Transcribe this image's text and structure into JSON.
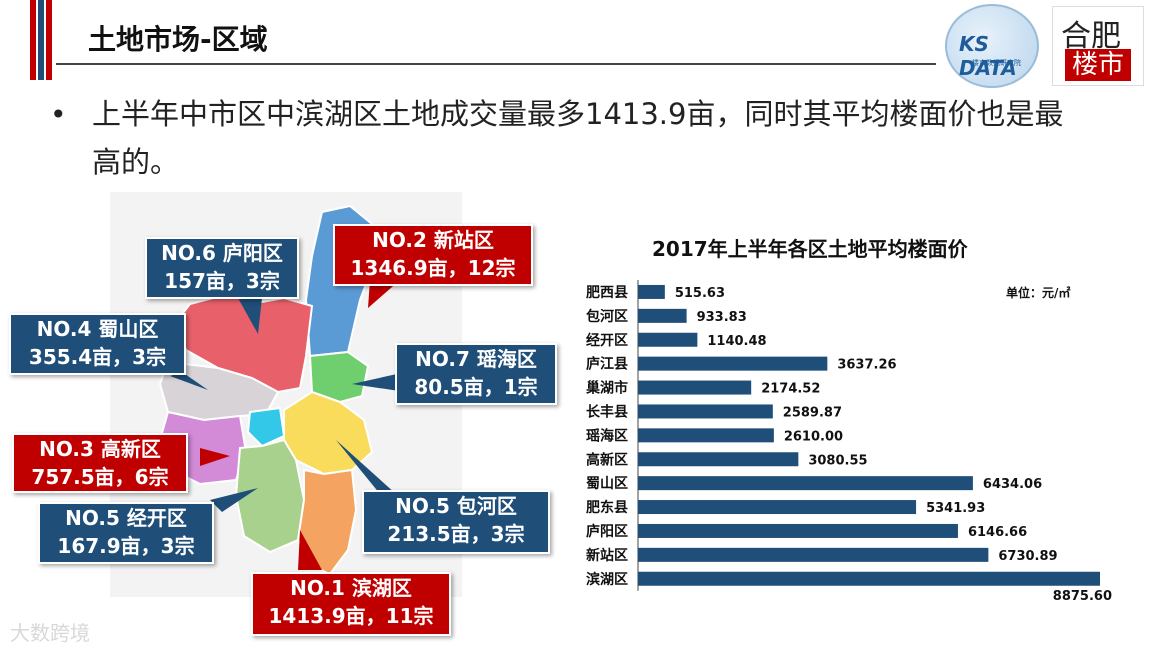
{
  "page": {
    "title": "土地市场-区域",
    "summary": "上半年中市区中滨湖区土地成交量最多1413.9亩，同时其平均楼面价也是最高的。",
    "bullet": "•",
    "watermark": "大数跨境"
  },
  "logos": {
    "ks_data": "KS DATA",
    "ks_sub": "楼市数据研究院",
    "hefei_top": "合肥",
    "hefei_bottom": "楼市"
  },
  "colors": {
    "callout_blue": "#1f4e79",
    "callout_red": "#c00000",
    "bar": "#1f4e79"
  },
  "map_callouts": [
    {
      "rank": "NO.6 庐阳区",
      "detail": "157亩，3宗",
      "color": "blue"
    },
    {
      "rank": "NO.2  新站区",
      "detail": "1346.9亩，12宗",
      "color": "red"
    },
    {
      "rank": "NO.4  蜀山区",
      "detail": "355.4亩，3宗",
      "color": "blue"
    },
    {
      "rank": "NO.7  瑶海区",
      "detail": "80.5亩，1宗",
      "color": "blue"
    },
    {
      "rank": "NO.3  高新区",
      "detail": "757.5亩，6宗",
      "color": "red"
    },
    {
      "rank": "NO.5  经开区",
      "detail": "167.9亩，3宗",
      "color": "blue"
    },
    {
      "rank": "NO.5  包河区",
      "detail": "213.5亩，3宗",
      "color": "blue"
    },
    {
      "rank": "NO.1  滨湖区",
      "detail": "1413.9亩，11宗",
      "color": "red"
    }
  ],
  "chart_data": {
    "type": "bar",
    "orientation": "horizontal",
    "title": "2017年上半年各区土地平均楼面价",
    "unit_label": "单位：元/㎡",
    "categories": [
      "肥西县",
      "包河区",
      "经开区",
      "庐江县",
      "巢湖市",
      "长丰县",
      "瑶海区",
      "高新区",
      "蜀山区",
      "肥东县",
      "庐阳区",
      "新站区",
      "滨湖区"
    ],
    "values": [
      515.63,
      933.83,
      1140.48,
      3637.26,
      2174.52,
      2589.87,
      2610.0,
      3080.55,
      6434.06,
      5341.93,
      6146.66,
      6730.89,
      8875.6
    ],
    "value_labels": [
      "515.63",
      "933.83",
      "1140.48",
      "3637.26",
      "2174.52",
      "2589.87",
      "2610.00",
      "3080.55",
      "6434.06",
      "5341.93",
      "6146.66",
      "6730.89",
      "8875.60"
    ],
    "xlim": [
      0,
      8875.6
    ],
    "grid": false,
    "legend": "none"
  }
}
